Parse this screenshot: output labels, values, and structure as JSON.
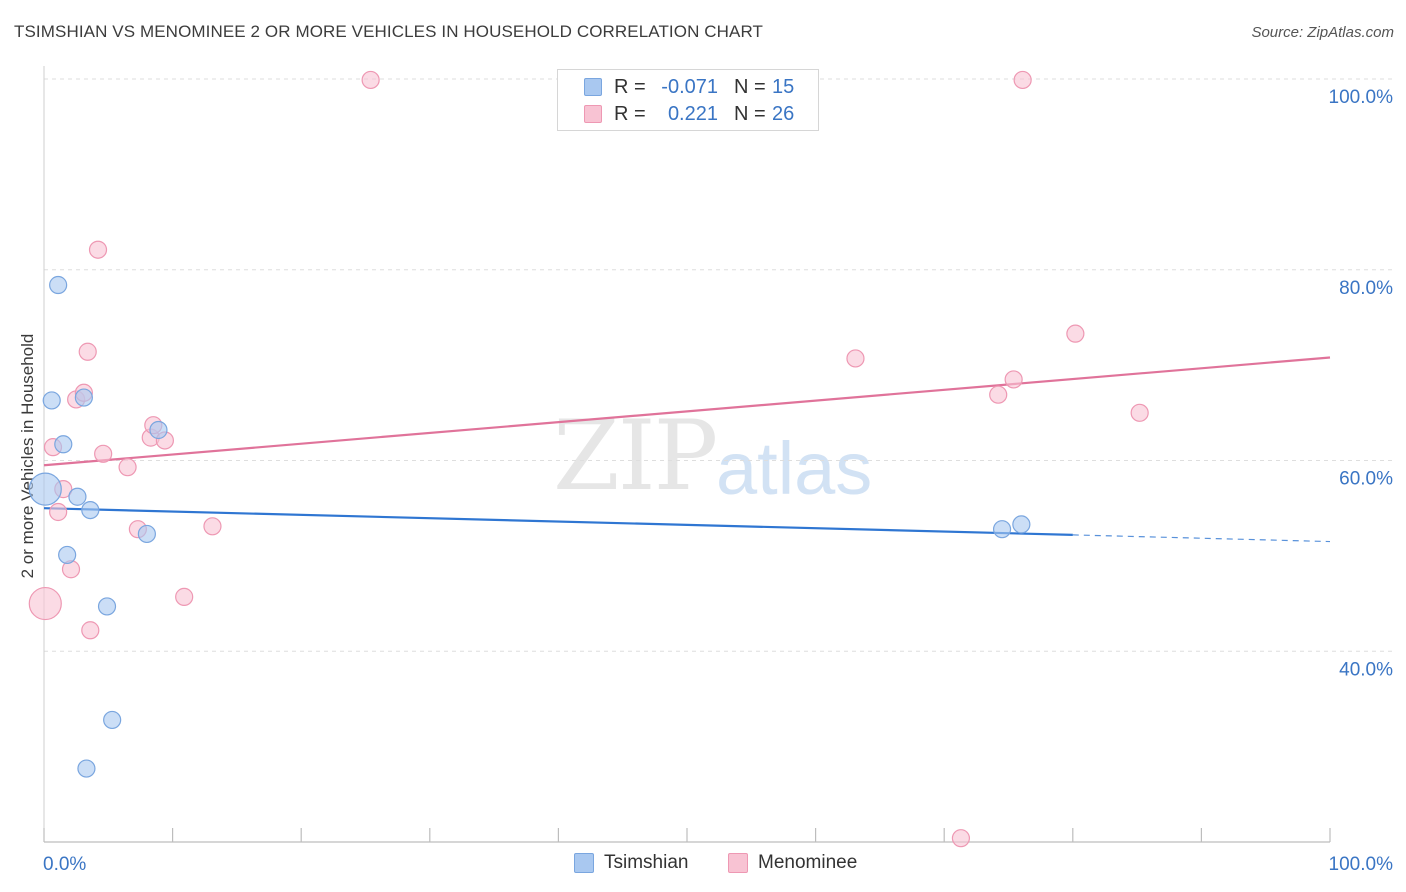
{
  "title": "TSIMSHIAN VS MENOMINEE 2 OR MORE VEHICLES IN HOUSEHOLD CORRELATION CHART",
  "source": "Source: ZipAtlas.com",
  "watermark": {
    "zip": "ZIP",
    "atlas": "atlas"
  },
  "legend": {
    "rows": [
      {
        "r_label": "R =",
        "r_value": "-0.071",
        "n_label": "N =",
        "n_value": "15",
        "color": "#a9c8f0",
        "border": "#7aa6df"
      },
      {
        "r_label": "R =",
        "r_value": "0.221",
        "n_label": "N =",
        "n_value": "26",
        "color": "#f8c3d3",
        "border": "#ee98b3"
      }
    ]
  },
  "bottom_legend": [
    {
      "label": "Tsimshian",
      "color": "#a9c8f0",
      "border": "#7aa6df"
    },
    {
      "label": "Menominee",
      "color": "#f8c3d3",
      "border": "#ee98b3"
    }
  ],
  "chart_data": {
    "type": "scatter",
    "title": "TSIMSHIAN VS MENOMINEE 2 OR MORE VEHICLES IN HOUSEHOLD CORRELATION CHART",
    "xlabel": "",
    "ylabel": "2 or more Vehicles in Household",
    "xlim": [
      0,
      100
    ],
    "ylim": [
      20,
      100
    ],
    "x_tick_labels": [
      "0.0%",
      "100.0%"
    ],
    "y_tick_labels": [
      {
        "value": 100,
        "label": "100.0%"
      },
      {
        "value": 80,
        "label": "80.0%"
      },
      {
        "value": 60,
        "label": "60.0%"
      },
      {
        "value": 40,
        "label": "40.0%"
      }
    ],
    "grid": true,
    "legend_position": "top-center",
    "series": [
      {
        "name": "Tsimshian",
        "color": "#a9c8f0",
        "stroke": "#7aa6df",
        "line_color": "#2f76d2",
        "trend": {
          "x0": 0,
          "y0": 55.0,
          "x1": 80,
          "y1": 52.2,
          "dash_to": 100,
          "dash_y": 51.5
        },
        "points": [
          {
            "x": 0.1,
            "y": 57.0,
            "big": true
          },
          {
            "x": 0.6,
            "y": 66.3
          },
          {
            "x": 1.1,
            "y": 78.4
          },
          {
            "x": 1.5,
            "y": 61.7
          },
          {
            "x": 1.8,
            "y": 50.1
          },
          {
            "x": 2.6,
            "y": 56.2
          },
          {
            "x": 3.1,
            "y": 66.6
          },
          {
            "x": 3.3,
            "y": 27.7
          },
          {
            "x": 3.6,
            "y": 54.8
          },
          {
            "x": 4.9,
            "y": 44.7
          },
          {
            "x": 5.3,
            "y": 32.8
          },
          {
            "x": 8.0,
            "y": 52.3
          },
          {
            "x": 8.9,
            "y": 63.2
          },
          {
            "x": 74.5,
            "y": 52.8
          },
          {
            "x": 76.0,
            "y": 53.3
          }
        ]
      },
      {
        "name": "Menominee",
        "color": "#f8c3d3",
        "stroke": "#ee98b3",
        "line_color": "#e0739a",
        "trend": {
          "x0": 0,
          "y0": 59.5,
          "x1": 100,
          "y1": 70.8
        },
        "points": [
          {
            "x": 0.1,
            "y": 45.0,
            "big": true
          },
          {
            "x": 0.7,
            "y": 61.4
          },
          {
            "x": 1.1,
            "y": 54.6
          },
          {
            "x": 1.5,
            "y": 57.0
          },
          {
            "x": 2.1,
            "y": 48.6
          },
          {
            "x": 2.5,
            "y": 66.4
          },
          {
            "x": 3.1,
            "y": 67.1
          },
          {
            "x": 3.4,
            "y": 71.4
          },
          {
            "x": 3.6,
            "y": 42.2
          },
          {
            "x": 4.2,
            "y": 82.1
          },
          {
            "x": 4.6,
            "y": 60.7
          },
          {
            "x": 6.5,
            "y": 59.3
          },
          {
            "x": 7.3,
            "y": 52.8
          },
          {
            "x": 8.3,
            "y": 62.4
          },
          {
            "x": 8.5,
            "y": 63.7
          },
          {
            "x": 9.4,
            "y": 62.1
          },
          {
            "x": 10.9,
            "y": 45.7
          },
          {
            "x": 13.1,
            "y": 53.1
          },
          {
            "x": 25.4,
            "y": 99.9
          },
          {
            "x": 63.1,
            "y": 70.7
          },
          {
            "x": 71.3,
            "y": 20.4
          },
          {
            "x": 74.2,
            "y": 66.9
          },
          {
            "x": 75.4,
            "y": 68.5
          },
          {
            "x": 76.1,
            "y": 99.9
          },
          {
            "x": 80.2,
            "y": 73.3
          },
          {
            "x": 85.2,
            "y": 65.0
          }
        ]
      }
    ]
  }
}
